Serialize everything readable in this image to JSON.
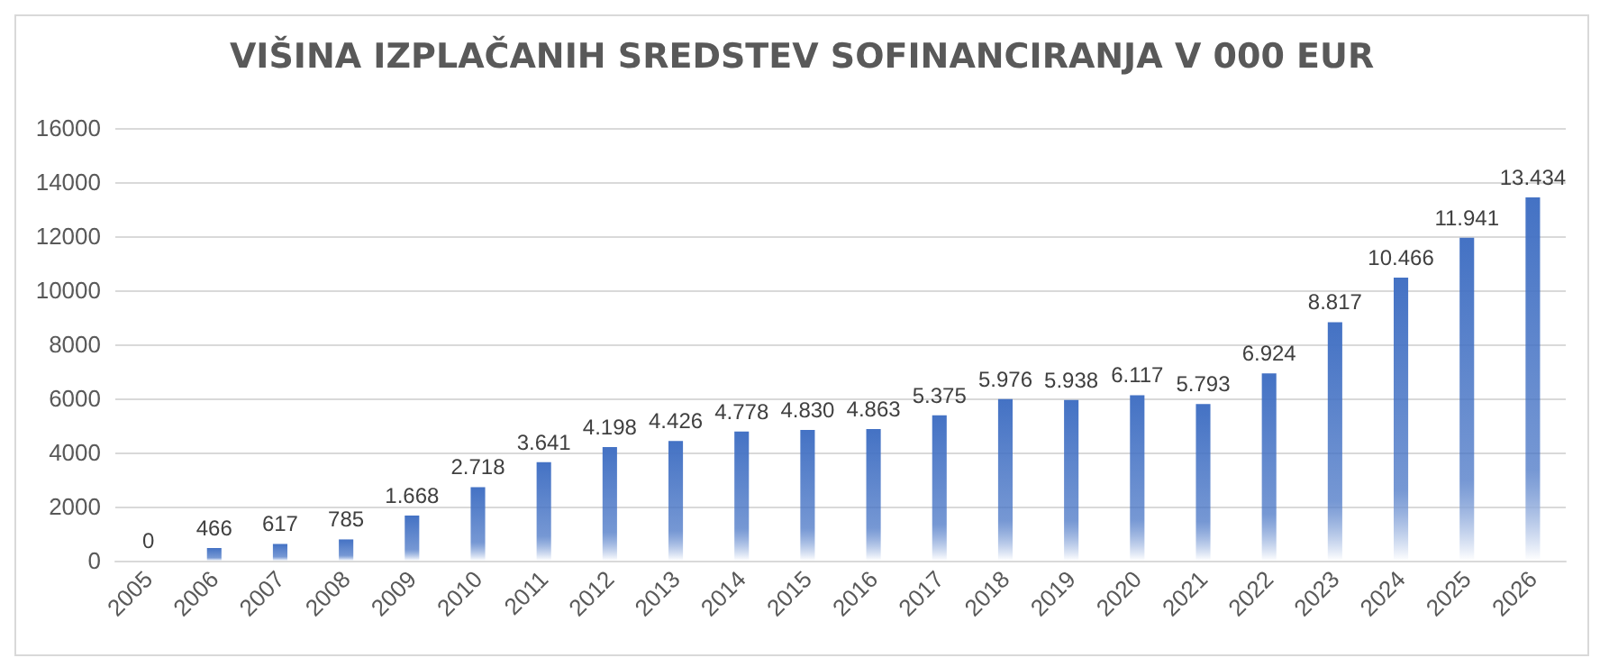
{
  "chart_data": {
    "type": "bar",
    "title": "VIŠINA IZPLAČANIH SREDSTEV SOFINANCIRANJA V 000 EUR",
    "categories": [
      "2005",
      "2006",
      "2007",
      "2008",
      "2009",
      "2010",
      "2011",
      "2012",
      "2013",
      "2014",
      "2015",
      "2016",
      "2017",
      "2018",
      "2019",
      "2020",
      "2021",
      "2022",
      "2023",
      "2024",
      "2025",
      "2026"
    ],
    "values": [
      0,
      466,
      617,
      785,
      1668,
      2718,
      3641,
      4198,
      4426,
      4778,
      4830,
      4863,
      5375,
      5976,
      5938,
      6117,
      5793,
      6924,
      8817,
      10466,
      11941,
      13434
    ],
    "value_labels": [
      "0",
      "466",
      "617",
      "785",
      "1.668",
      "2.718",
      "3.641",
      "4.198",
      "4.426",
      "4.778",
      "4.830",
      "4.863",
      "5.375",
      "5.976",
      "5.938",
      "6.117",
      "5.793",
      "6.924",
      "8.817",
      "10.466",
      "11.941",
      "13.434"
    ],
    "color": "#4472c4",
    "ylim": [
      0,
      16000
    ],
    "yticks": [
      0,
      2000,
      4000,
      6000,
      8000,
      10000,
      12000,
      14000,
      16000
    ],
    "grid": "y"
  }
}
